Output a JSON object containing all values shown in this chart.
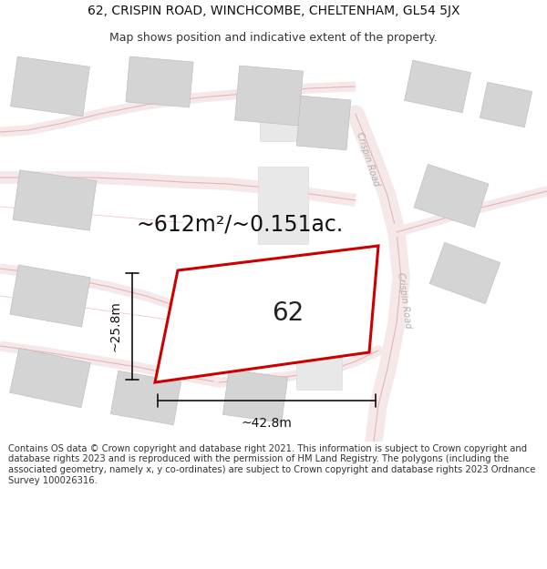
{
  "title_line1": "62, CRISPIN ROAD, WINCHCOMBE, CHELTENHAM, GL54 5JX",
  "title_line2": "Map shows position and indicative extent of the property.",
  "area_text": "~612m²/~0.151ac.",
  "label_62": "62",
  "dim_width": "~42.8m",
  "dim_height": "~25.8m",
  "road_label_upper": "Crispin Road",
  "road_label_lower": "Crispin Road",
  "footer": "Contains OS data © Crown copyright and database right 2021. This information is subject to Crown copyright and database rights 2023 and is reproduced with the permission of HM Land Registry. The polygons (including the associated geometry, namely x, y co-ordinates) are subject to Crown copyright and database rights 2023 Ordnance Survey 100026316.",
  "bg_color": "#ffffff",
  "map_bg": "#ffffff",
  "plot_fill": "#ffffff",
  "plot_edge": "#cc0000",
  "road_line_color": "#e8b4b4",
  "road_fill_color": "#f5e8e8",
  "building_fill": "#d4d4d4",
  "building_edge": "#c0c0c0",
  "dim_color": "#111111",
  "title_fontsize": 10,
  "subtitle_fontsize": 9,
  "area_fontsize": 17,
  "label_fontsize": 20,
  "footer_fontsize": 7.2,
  "road_lw": 14,
  "road_border_lw": 0.8
}
